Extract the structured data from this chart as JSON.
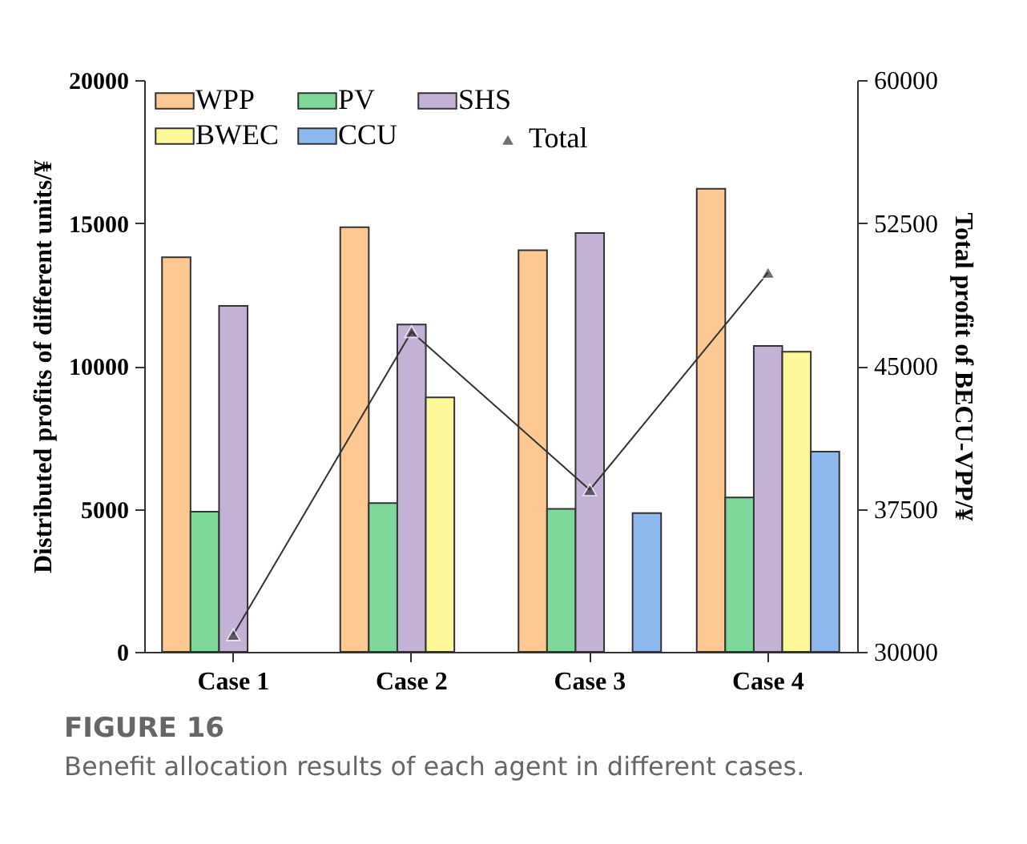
{
  "chart_data": {
    "type": "bar",
    "categories": [
      "Case 1",
      "Case 2",
      "Case 3",
      "Case 4"
    ],
    "series": [
      {
        "name": "WPP",
        "color": "#fdc891",
        "values": [
          13800,
          14850,
          14050,
          16200
        ]
      },
      {
        "name": "PV",
        "color": "#7dd89a",
        "values": [
          4900,
          5200,
          5000,
          5400
        ]
      },
      {
        "name": "SHS",
        "color": "#c3b1d6",
        "values": [
          12100,
          11450,
          14650,
          10700
        ]
      },
      {
        "name": "BWEC",
        "color": "#fdf99a",
        "values": [
          null,
          8900,
          null,
          10500
        ]
      },
      {
        "name": "CCU",
        "color": "#8db9ee",
        "values": [
          null,
          null,
          4850,
          7000
        ]
      },
      {
        "name": "Total",
        "type": "line",
        "axis": "y2",
        "color": "#333333",
        "marker": "triangle",
        "values": [
          30900,
          46800,
          38500,
          49900
        ]
      }
    ],
    "ylabel": "Distributed profits of different units/¥",
    "y2label": "Total profit of BECU-VPP/¥",
    "ylim": [
      0,
      20000
    ],
    "yticks": [
      0,
      5000,
      10000,
      15000,
      20000
    ],
    "y2lim": [
      30000,
      60000
    ],
    "y2ticks": [
      30000,
      37500,
      45000,
      52500,
      60000
    ],
    "legend": "top left",
    "grid": false,
    "annotations": [
      "FIGURE 16",
      "Benefit allocation results of each agent in different cases."
    ]
  }
}
